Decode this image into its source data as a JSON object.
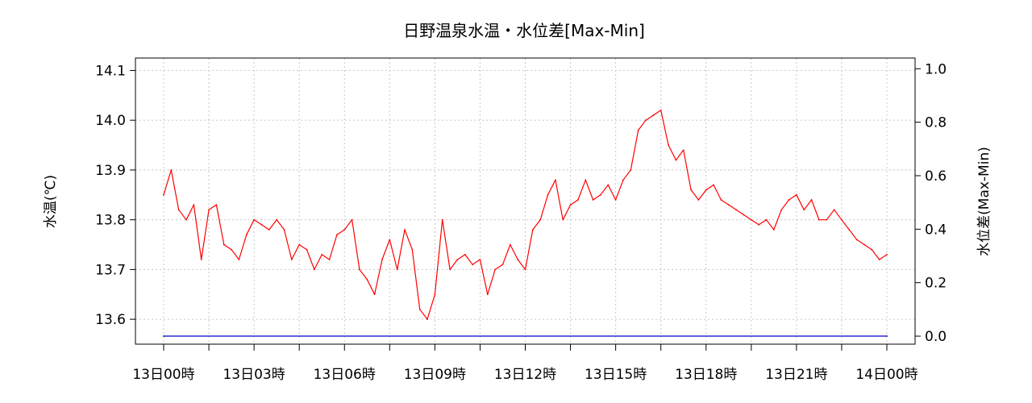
{
  "chart_data": {
    "type": "line",
    "title": "日野温泉水温・水位差[Max-Min]",
    "xlabel": "",
    "ylabel": "水温(℃)",
    "y2label": "水位差(Max-Min)",
    "x_range_hours": [
      0,
      24
    ],
    "ylim": [
      13.55,
      14.125
    ],
    "y2lim": [
      -0.03,
      1.04
    ],
    "x_ticks": [
      {
        "hour": 0,
        "label": "13日00時"
      },
      {
        "hour": 3,
        "label": "13日03時"
      },
      {
        "hour": 6,
        "label": "13日06時"
      },
      {
        "hour": 9,
        "label": "13日09時"
      },
      {
        "hour": 12,
        "label": "13日12時"
      },
      {
        "hour": 15,
        "label": "13日15時"
      },
      {
        "hour": 18,
        "label": "13日18時"
      },
      {
        "hour": 21,
        "label": "13日21時"
      },
      {
        "hour": 24,
        "label": "14日00時"
      }
    ],
    "y_ticks": [
      "13.6",
      "13.7",
      "13.8",
      "13.9",
      "14.0",
      "14.1"
    ],
    "y2_ticks": [
      "0.0",
      "0.2",
      "0.4",
      "0.6",
      "0.8",
      "1.0"
    ],
    "grid": true,
    "colors": {
      "temperature": "#ff0000",
      "level_diff": "#0000cc"
    },
    "series": [
      {
        "axis": "left",
        "hours": [
          0,
          0.25,
          0.5,
          0.75,
          1,
          1.25,
          1.5,
          1.75,
          2,
          2.25,
          2.5,
          2.75,
          3,
          3.25,
          3.5,
          3.75,
          4,
          4.25,
          4.5,
          4.75,
          5,
          5.25,
          5.5,
          5.75,
          6,
          6.25,
          6.5,
          6.75,
          7,
          7.25,
          7.5,
          7.75,
          8,
          8.25,
          8.5,
          8.75,
          9,
          9.25,
          9.5,
          9.75,
          10,
          10.25,
          10.5,
          10.75,
          11,
          11.25,
          11.5,
          11.75,
          12,
          12.25,
          12.5,
          12.75,
          13,
          13.25,
          13.5,
          13.75,
          14,
          14.25,
          14.5,
          14.75,
          15,
          15.25,
          15.5,
          15.75,
          16,
          16.25,
          16.5,
          16.75,
          17,
          17.25,
          17.5,
          17.75,
          18,
          18.25,
          18.5,
          18.75,
          19,
          19.25,
          19.5,
          19.75,
          20,
          20.25,
          20.5,
          20.75,
          21,
          21.25,
          21.5,
          21.75,
          22,
          22.25,
          22.5,
          22.75,
          23,
          23.25,
          23.5,
          23.75,
          24
        ],
        "values": [
          13.85,
          13.9,
          13.82,
          13.8,
          13.83,
          13.72,
          13.82,
          13.83,
          13.75,
          13.74,
          13.72,
          13.77,
          13.8,
          13.79,
          13.78,
          13.8,
          13.78,
          13.72,
          13.75,
          13.74,
          13.7,
          13.73,
          13.72,
          13.77,
          13.78,
          13.8,
          13.7,
          13.68,
          13.65,
          13.72,
          13.76,
          13.7,
          13.78,
          13.74,
          13.62,
          13.6,
          13.65,
          13.8,
          13.7,
          13.72,
          13.73,
          13.71,
          13.72,
          13.65,
          13.7,
          13.71,
          13.75,
          13.72,
          13.7,
          13.78,
          13.8,
          13.85,
          13.88,
          13.8,
          13.83,
          13.84,
          13.88,
          13.84,
          13.85,
          13.87,
          13.84,
          13.88,
          13.9,
          13.98,
          14.0,
          14.01,
          14.02,
          13.95,
          13.92,
          13.94,
          13.86,
          13.84,
          13.86,
          13.87,
          13.84,
          13.83,
          13.82,
          13.81,
          13.8,
          13.79,
          13.8,
          13.78,
          13.82,
          13.84,
          13.85,
          13.82,
          13.84,
          13.8,
          13.8,
          13.82,
          13.8,
          13.78,
          13.76,
          13.75,
          13.74,
          13.72,
          13.73
        ]
      },
      {
        "axis": "right",
        "hours": [
          0,
          24
        ],
        "values": [
          0.0,
          0.0
        ]
      }
    ]
  }
}
